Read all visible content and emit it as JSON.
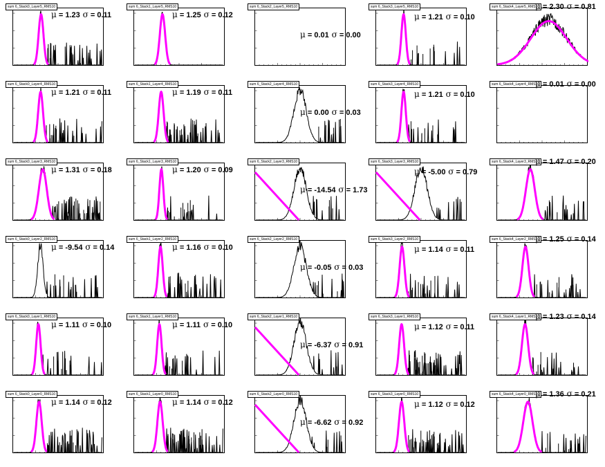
{
  "colors": {
    "histogram": "#000000",
    "fit": "#ff00ff",
    "background": "#ffffff"
  },
  "chart_data": [
    {
      "type": "histogram",
      "title": "sum 6_Stack0_Layer5_RMS10",
      "annotation": {
        "mu": "1.23",
        "sigma": "0.11"
      },
      "peak": 1.23,
      "width": 0.11,
      "fit": "gaussian",
      "tail": 1
    },
    {
      "type": "histogram",
      "title": "sum 6_Stack1_Layer5_RMS10",
      "annotation": {
        "mu": "1.25",
        "sigma": "0.12"
      },
      "peak": 1.25,
      "width": 0.12,
      "fit": "gaussian",
      "tail": 0
    },
    {
      "type": "histogram",
      "title": "sum 6_Stack2_Layer5_RMS10",
      "annotation": {
        "mu": "0.01",
        "sigma": "0.00"
      },
      "peak": null,
      "width": null,
      "fit": "none",
      "tail": 0
    },
    {
      "type": "histogram",
      "title": "sum 6_Stack3_Layer5_RMS10",
      "annotation": {
        "mu": "1.21",
        "sigma": "0.10"
      },
      "peak": 1.21,
      "width": 0.1,
      "fit": "gaussian",
      "tail": 1
    },
    {
      "type": "histogram",
      "title": "sum 6_Stack4_Layer5_RMS10",
      "annotation": {
        "mu": "2.30",
        "sigma": "0.81"
      },
      "peak": 2.3,
      "width": 0.81,
      "fit": "gaussian",
      "tail": 0
    },
    {
      "type": "histogram",
      "title": "sum 6_Stack0_Layer4_RMS10",
      "annotation": {
        "mu": "1.21",
        "sigma": "0.11"
      },
      "peak": 1.21,
      "width": 0.11,
      "fit": "gaussian",
      "tail": 1
    },
    {
      "type": "histogram",
      "title": "sum 6_Stack1_Layer4_RMS10",
      "annotation": {
        "mu": "1.19",
        "sigma": "0.11"
      },
      "peak": 1.19,
      "width": 0.11,
      "fit": "gaussian",
      "tail": 2
    },
    {
      "type": "histogram",
      "title": "sum 6_Stack2_Layer4_RMS10",
      "annotation": {
        "mu": "0.00",
        "sigma": "0.03"
      },
      "peak": 2.0,
      "width": 0.28,
      "fit": "none",
      "tail": 1
    },
    {
      "type": "histogram",
      "title": "sum 6_Stack3_Layer4_RMS10",
      "annotation": {
        "mu": "1.21",
        "sigma": "0.10"
      },
      "peak": 1.21,
      "width": 0.1,
      "fit": "gaussian",
      "tail": 1
    },
    {
      "type": "histogram",
      "title": "sum 6_Stack4_Layer4_RMS10",
      "annotation": {
        "mu": "0.01",
        "sigma": "0.00"
      },
      "peak": null,
      "width": null,
      "fit": "none",
      "tail": 0
    },
    {
      "type": "histogram",
      "title": "sum 6_Stack0_Layer3_RMS10",
      "annotation": {
        "mu": "1.31",
        "sigma": "0.18"
      },
      "peak": 1.31,
      "width": 0.18,
      "fit": "gaussian",
      "tail": 2
    },
    {
      "type": "histogram",
      "title": "sum 6_Stack1_Layer3_RMS10",
      "annotation": {
        "mu": "1.20",
        "sigma": "0.09"
      },
      "peak": 1.2,
      "width": 0.09,
      "fit": "gaussian",
      "tail": 1
    },
    {
      "type": "histogram",
      "title": "sum 6_Stack2_Layer3_RMS10",
      "annotation": {
        "mu": "-14.54",
        "sigma": "1.73"
      },
      "peak": 2.0,
      "width": 0.28,
      "fit": "linear",
      "tail": 1
    },
    {
      "type": "histogram",
      "title": "sum 6_Stack3_Layer3_RMS10",
      "annotation": {
        "mu": "-5.00",
        "sigma": "0.79"
      },
      "peak": 2.0,
      "width": 0.28,
      "fit": "linear",
      "tail": 1
    },
    {
      "type": "histogram",
      "title": "sum 6_Stack4_Layer3_RMS10",
      "annotation": {
        "mu": "1.47",
        "sigma": "0.20"
      },
      "peak": 1.47,
      "width": 0.2,
      "fit": "gaussian",
      "tail": 1
    },
    {
      "type": "histogram",
      "title": "sum 6_Stack0_Layer2_RMS10",
      "annotation": {
        "mu": "-9.54",
        "sigma": "0.14"
      },
      "peak": 1.2,
      "width": 0.12,
      "fit": "none",
      "tail": 1
    },
    {
      "type": "histogram",
      "title": "sum 6_Stack1_Layer2_RMS10",
      "annotation": {
        "mu": "1.16",
        "sigma": "0.10"
      },
      "peak": 1.16,
      "width": 0.1,
      "fit": "gaussian",
      "tail": 1
    },
    {
      "type": "histogram",
      "title": "sum 6_Stack2_Layer2_RMS10",
      "annotation": {
        "mu": "-0.05",
        "sigma": "0.03"
      },
      "peak": 2.0,
      "width": 0.28,
      "fit": "none",
      "tail": 1
    },
    {
      "type": "histogram",
      "title": "sum 6_Stack3_Layer2_RMS10",
      "annotation": {
        "mu": "1.14",
        "sigma": "0.11"
      },
      "peak": 1.14,
      "width": 0.11,
      "fit": "gaussian",
      "tail": 1
    },
    {
      "type": "histogram",
      "title": "sum 6_Stack4_Layer2_RMS10",
      "annotation": {
        "mu": "1.25",
        "sigma": "0.14"
      },
      "peak": 1.25,
      "width": 0.14,
      "fit": "gaussian",
      "tail": 1
    },
    {
      "type": "histogram",
      "title": "sum 6_Stack0_Layer1_RMS10",
      "annotation": {
        "mu": "1.11",
        "sigma": "0.10"
      },
      "peak": 1.11,
      "width": 0.1,
      "fit": "gaussian",
      "tail": 1
    },
    {
      "type": "histogram",
      "title": "sum 6_Stack1_Layer1_RMS10",
      "annotation": {
        "mu": "1.11",
        "sigma": "0.10"
      },
      "peak": 1.11,
      "width": 0.1,
      "fit": "gaussian",
      "tail": 1
    },
    {
      "type": "histogram",
      "title": "sum 6_Stack2_Layer1_RMS10",
      "annotation": {
        "mu": "-6.37",
        "sigma": "0.91"
      },
      "peak": 2.0,
      "width": 0.28,
      "fit": "linear",
      "tail": 1
    },
    {
      "type": "histogram",
      "title": "sum 6_Stack3_Layer1_RMS10",
      "annotation": {
        "mu": "1.12",
        "sigma": "0.11"
      },
      "peak": 1.12,
      "width": 0.11,
      "fit": "gaussian",
      "tail": 2
    },
    {
      "type": "histogram",
      "title": "sum 6_Stack4_Layer1_RMS10",
      "annotation": {
        "mu": "1.23",
        "sigma": "0.14"
      },
      "peak": 1.23,
      "width": 0.14,
      "fit": "gaussian",
      "tail": 1
    },
    {
      "type": "histogram",
      "title": "sum 6_Stack0_Layer0_RMS10",
      "annotation": {
        "mu": "1.14",
        "sigma": "0.12"
      },
      "peak": 1.14,
      "width": 0.12,
      "fit": "gaussian",
      "tail": 2
    },
    {
      "type": "histogram",
      "title": "sum 6_Stack1_Layer0_RMS10",
      "annotation": {
        "mu": "1.14",
        "sigma": "0.12"
      },
      "peak": 1.14,
      "width": 0.12,
      "fit": "gaussian",
      "tail": 2
    },
    {
      "type": "histogram",
      "title": "sum 6_Stack2_Layer0_RMS10",
      "annotation": {
        "mu": "-6.62",
        "sigma": "0.92"
      },
      "peak": 2.0,
      "width": 0.28,
      "fit": "linear",
      "tail": 1
    },
    {
      "type": "histogram",
      "title": "sum 6_Stack3_Layer0_RMS10",
      "annotation": {
        "mu": "1.12",
        "sigma": "0.12"
      },
      "peak": 1.12,
      "width": 0.12,
      "fit": "gaussian",
      "tail": 2
    },
    {
      "type": "histogram",
      "title": "sum 6_Stack4_Layer0_RMS10",
      "annotation": {
        "mu": "1.36",
        "sigma": "0.21"
      },
      "peak": 1.36,
      "width": 0.21,
      "fit": "gaussian",
      "tail": 1
    }
  ]
}
